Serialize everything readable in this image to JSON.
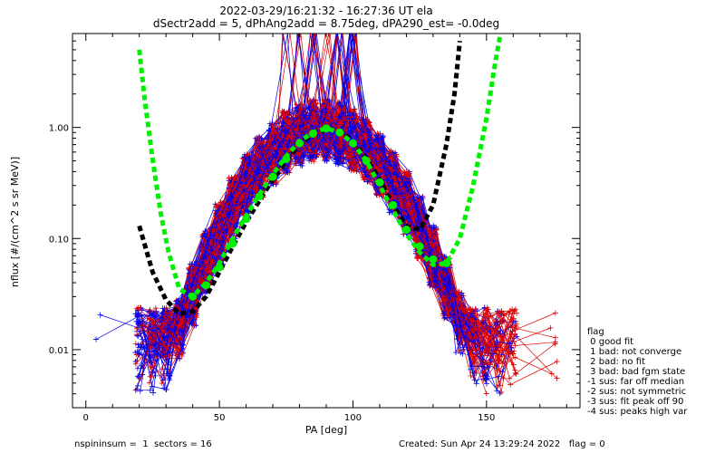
{
  "chart_data": {
    "type": "line",
    "title_line1": "2022-03-29/16:21:32 - 16:27:36 UT ela",
    "title_line2": "dSectr2add = 5, dPhAng2add = 8.75deg, dPA290_est=  -0.0deg",
    "xlabel": "PA [deg]",
    "ylabel": "nflux [#/(cm^2 s sr MeV)]",
    "xlim": [
      -5,
      185
    ],
    "ylim": [
      0.003,
      7.0
    ],
    "yscale": "log",
    "x_ticks": [
      0,
      50,
      100,
      150
    ],
    "y_ticks": [
      {
        "value": 0.01,
        "label": "0.01"
      },
      {
        "value": 0.1,
        "label": "0.10"
      },
      {
        "value": 1.0,
        "label": "1.00"
      }
    ],
    "colors": {
      "red_traces": "#dd0000",
      "blue_traces": "#0000ee",
      "black_fit": "#000000",
      "green_fit": "#00ee00"
    },
    "series": [
      {
        "style": "black-dashed-fit",
        "x": [
          20,
          25,
          30,
          35,
          40,
          45,
          50,
          55,
          60,
          65,
          70,
          75,
          80,
          85,
          90,
          95,
          100,
          105,
          110,
          115,
          120,
          125,
          130,
          135,
          138,
          140
        ],
        "values": [
          0.13,
          0.05,
          0.028,
          0.021,
          0.022,
          0.03,
          0.05,
          0.085,
          0.14,
          0.22,
          0.34,
          0.5,
          0.7,
          0.88,
          0.97,
          0.92,
          0.75,
          0.52,
          0.34,
          0.2,
          0.13,
          0.12,
          0.2,
          0.7,
          2.0,
          6.0
        ]
      },
      {
        "style": "green-dashed-fit",
        "x": [
          20,
          22,
          25,
          28,
          31,
          35,
          40,
          45,
          50,
          55,
          60,
          65,
          70,
          75,
          80,
          85,
          90,
          95,
          100,
          105,
          110,
          115,
          120,
          125,
          130,
          135,
          140,
          145,
          150,
          153,
          155
        ],
        "values": [
          5.0,
          1.8,
          0.52,
          0.17,
          0.075,
          0.035,
          0.03,
          0.04,
          0.06,
          0.1,
          0.16,
          0.25,
          0.38,
          0.55,
          0.75,
          0.9,
          0.98,
          0.9,
          0.72,
          0.5,
          0.3,
          0.18,
          0.11,
          0.075,
          0.058,
          0.06,
          0.1,
          0.3,
          1.2,
          3.5,
          6.5
        ]
      },
      {
        "style": "green-dots",
        "x": [
          40,
          45,
          50,
          55,
          60,
          65,
          70,
          75,
          80,
          85,
          90,
          95,
          100,
          105,
          110,
          115,
          120,
          125,
          130,
          135
        ],
        "values": [
          0.03,
          0.038,
          0.055,
          0.09,
          0.15,
          0.24,
          0.36,
          0.52,
          0.72,
          0.88,
          0.98,
          0.9,
          0.72,
          0.5,
          0.32,
          0.2,
          0.12,
          0.085,
          0.065,
          0.06
        ]
      }
    ]
  },
  "legend": {
    "title": "flag",
    "items": [
      " 0 good fit",
      " 1 bad: not converge",
      " 2 bad: no fit",
      " 3 bad: bad fgm state",
      "-1 sus: far off median",
      "-2 sus: not symmetric",
      "-3 sus: fit peak off 90",
      "-4 sus: peaks high var"
    ]
  },
  "footer": {
    "left": "nspininsum =  1  sectors = 16",
    "right": "Created: Sun Apr 24 13:29:24 2022   flag = 0"
  }
}
